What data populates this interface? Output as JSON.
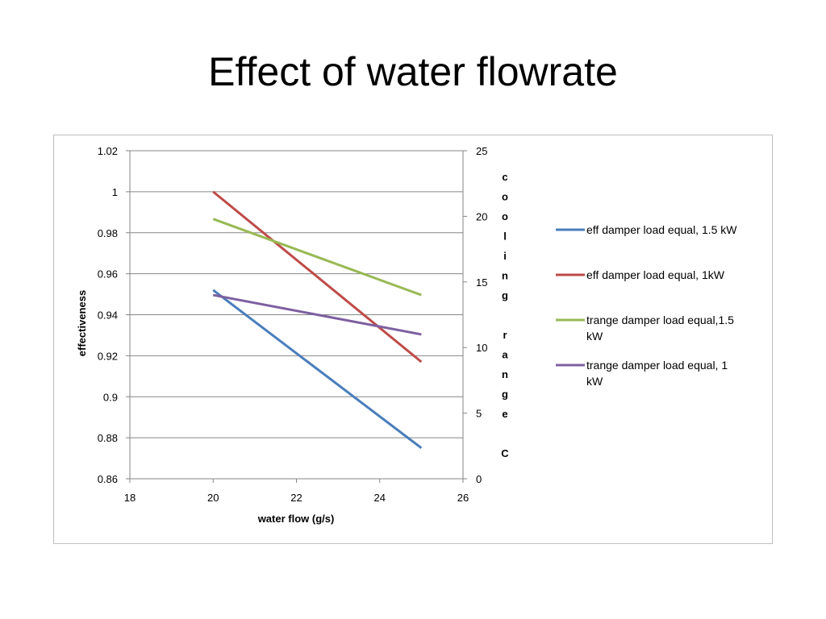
{
  "slide": {
    "title": "Effect of water flowrate"
  },
  "chart_data": {
    "type": "line",
    "xlabel": "water flow (g/s)",
    "ylabel": "effectiveness",
    "y2label": "cooling range C",
    "xlim": [
      18,
      26
    ],
    "ylim": [
      0.86,
      1.02
    ],
    "y2lim": [
      0,
      25
    ],
    "x_ticks": [
      "18",
      "20",
      "22",
      "24",
      "26"
    ],
    "y_ticks": [
      "0.86",
      "0.88",
      "0.9",
      "0.92",
      "0.94",
      "0.96",
      "0.98",
      "1",
      "1.02"
    ],
    "y2_ticks": [
      "0",
      "5",
      "10",
      "15",
      "20",
      "25"
    ],
    "grid": true,
    "legend_position": "right",
    "series": [
      {
        "name": "eff damper load equal, 1.5 kW",
        "lines": [
          "eff damper load equal, 1.5 kW"
        ],
        "axis": "left",
        "color": "#4a7ebb",
        "x": [
          20,
          25
        ],
        "y": [
          0.952,
          0.875
        ]
      },
      {
        "name": "eff damper load equal, 1kW",
        "lines": [
          "eff damper load equal, 1kW"
        ],
        "axis": "left",
        "color": "#be4b48",
        "x": [
          20,
          25
        ],
        "y": [
          1.0,
          0.917
        ]
      },
      {
        "name": "trange damper load equal,1.5 kW",
        "lines": [
          "trange damper load equal,1.5",
          "kW"
        ],
        "axis": "right",
        "color": "#98b954",
        "x": [
          20,
          25
        ],
        "y": [
          19.8,
          14.0
        ]
      },
      {
        "name": "trange damper load equal, 1 kW",
        "lines": [
          "trange damper load equal, 1",
          "kW"
        ],
        "axis": "right",
        "color": "#7d60a0",
        "x": [
          20,
          25
        ],
        "y": [
          14.0,
          11.0
        ]
      }
    ]
  }
}
